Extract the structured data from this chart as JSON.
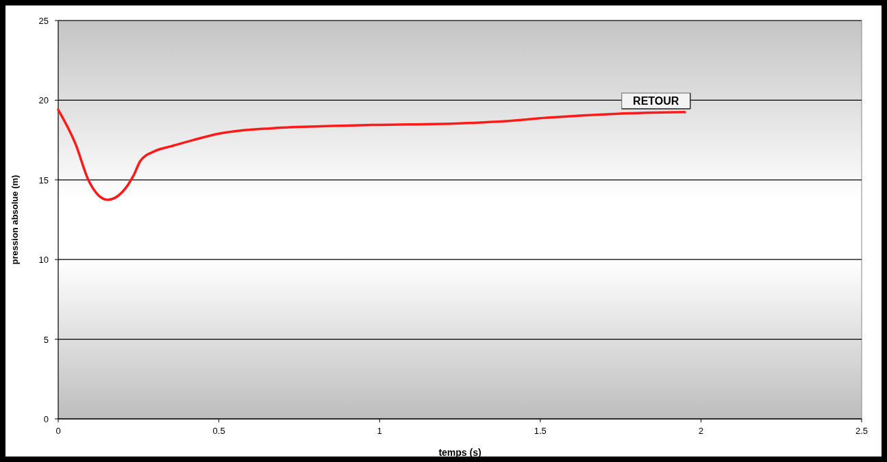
{
  "chart_data": {
    "type": "line",
    "xlabel": "temps (s)",
    "ylabel": "pression absolue (m)",
    "annotations": [
      "RETOUR"
    ],
    "x": [
      0,
      0.053,
      0.096,
      0.154,
      0.2,
      0.235,
      0.256,
      0.3,
      0.35,
      0.42,
      0.5,
      0.67,
      0.85,
      0.99,
      1.25,
      1.4,
      1.52,
      1.74,
      1.95
    ],
    "series": [
      {
        "color": "#ff1a1a",
        "values": [
          19.4,
          17.3,
          14.9,
          13.75,
          14.25,
          15.3,
          16.2,
          16.8,
          17.1,
          17.5,
          17.9,
          18.25,
          18.38,
          18.45,
          18.55,
          18.7,
          18.9,
          19.15,
          19.25
        ]
      }
    ],
    "xlim": [
      0,
      2.5
    ],
    "xticks": [
      0,
      0.5,
      1,
      1.5,
      2,
      2.5
    ],
    "ylim": [
      0,
      25
    ],
    "yticks": [
      0,
      5,
      10,
      15,
      20,
      25
    ],
    "grid": "y",
    "marker": "none",
    "line_style": "solid"
  }
}
